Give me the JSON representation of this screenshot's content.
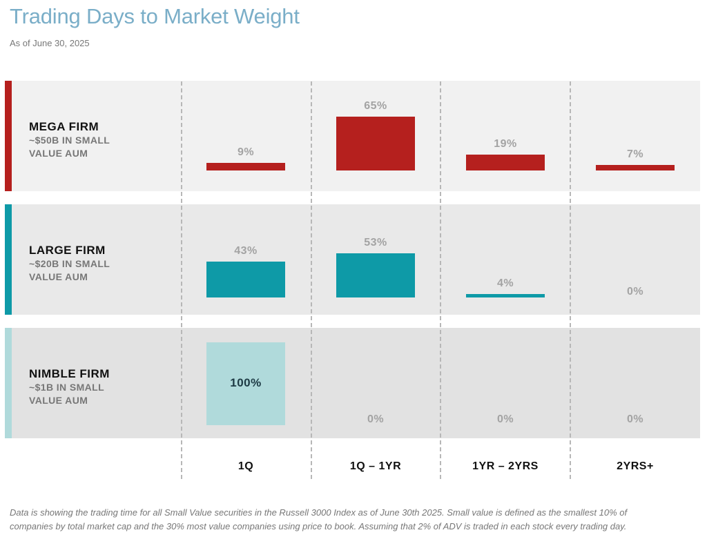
{
  "title": "Trading Days to Market Weight",
  "subtitle": "As of June 30, 2025",
  "footnote": "Data is showing the trading time for all Small Value securities in the Russell 3000 Index as of June 30th 2025. Small value is defined as the smallest 10% of companies by total market cap and the 30% most value companies using price to book. Assuming that 2% of ADV is traded in each stock every trading day.",
  "chart_data": {
    "type": "bar",
    "title": "Trading Days to Market Weight",
    "subtitle": "As of June 30, 2025",
    "categories": [
      "1Q",
      "1Q – 1YR",
      "1YR – 2YRS",
      "2YRS+"
    ],
    "series": [
      {
        "name": "MEGA FIRM",
        "description": "~$50B IN SMALL VALUE AUM",
        "values": [
          9,
          65,
          19,
          7
        ],
        "labels": [
          "9%",
          "65%",
          "19%",
          "7%"
        ],
        "color": "#b5201e",
        "band": "#f1f1f1"
      },
      {
        "name": "LARGE FIRM",
        "description": "~$20B IN SMALL VALUE AUM",
        "values": [
          43,
          53,
          4,
          0
        ],
        "labels": [
          "43%",
          "53%",
          "4%",
          "0%"
        ],
        "color": "#0e9aa7",
        "band": "#e9e9e9"
      },
      {
        "name": "NIMBLE FIRM",
        "description": "~$1B IN SMALL VALUE AUM",
        "values": [
          100,
          0,
          0,
          0
        ],
        "labels": [
          "100%",
          "0%",
          "0%",
          "0%"
        ],
        "color": "#b0dadb",
        "band": "#e2e2e2"
      }
    ],
    "ylim": [
      0,
      100
    ],
    "unit": "%"
  }
}
